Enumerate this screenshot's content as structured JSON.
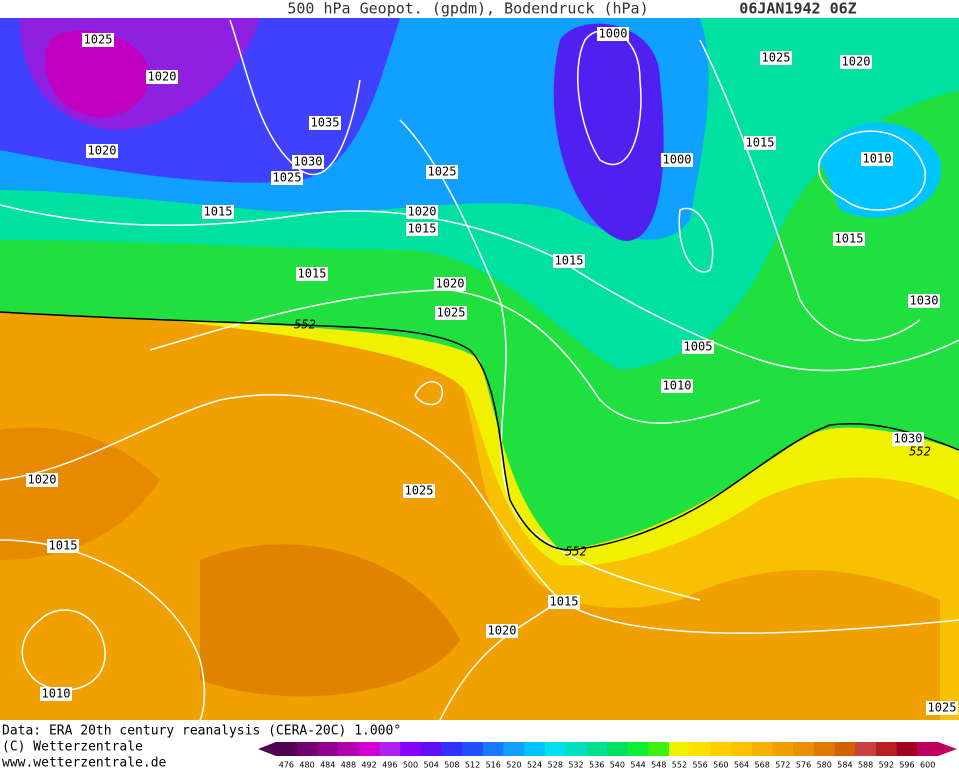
{
  "header": {
    "title": "500 hPa Geopot. (gpdm), Bodendruck (hPa)",
    "date": "06JAN1942 06Z"
  },
  "footer": {
    "source": "Data: ERA 20th century reanalysis (CERA-20C) 1.000°",
    "copyright": "(C) Wetterzentrale",
    "url": "www.wetterzentrale.de"
  },
  "colorbar": {
    "levels": [
      476,
      480,
      484,
      488,
      492,
      496,
      500,
      504,
      508,
      512,
      516,
      520,
      524,
      528,
      532,
      536,
      540,
      544,
      548,
      552,
      556,
      560,
      564,
      568,
      572,
      576,
      580,
      584,
      588,
      592,
      596,
      600
    ],
    "colors": [
      "#500050",
      "#700070",
      "#900090",
      "#b000b0",
      "#d000d0",
      "#b020f0",
      "#8a00ff",
      "#6010f0",
      "#3030ff",
      "#2050ff",
      "#1a78ff",
      "#10a0ff",
      "#00c4ff",
      "#00e0f0",
      "#00e0c0",
      "#00e090",
      "#00e060",
      "#10ee30",
      "#40f010",
      "#f0f000",
      "#ffe000",
      "#ffd000",
      "#ffc000",
      "#f5b000",
      "#f0a000",
      "#e89000",
      "#e07800",
      "#d06000",
      "#c84040",
      "#b82020",
      "#a00020",
      "#c00060"
    ]
  },
  "isobar_labels": [
    "1025",
    "1020",
    "1020",
    "1035",
    "1030",
    "1025",
    "1025",
    "1015",
    "1020",
    "1015",
    "1015",
    "1020",
    "1025",
    "1015",
    "1000",
    "1025",
    "1020",
    "1015",
    "1000",
    "1010",
    "1015",
    "1030",
    "1005",
    "1010",
    "1030",
    "1025",
    "1020",
    "1015",
    "1015",
    "1020",
    "1010",
    "1025"
  ],
  "contour_labels": [
    "552",
    "552",
    "552"
  ]
}
